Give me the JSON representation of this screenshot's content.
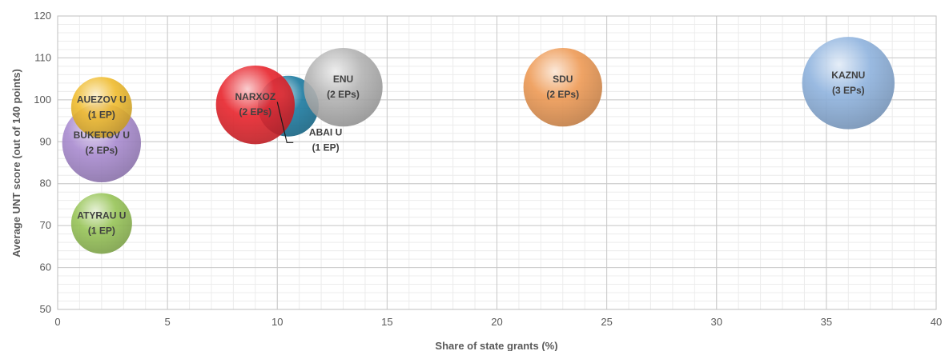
{
  "chart_data": {
    "type": "bubble",
    "title": "",
    "xlabel": "Share of state grants (%)",
    "ylabel": "Average UNT score (out of 140 points)",
    "xlim": [
      0,
      40
    ],
    "ylim": [
      50,
      120
    ],
    "x_ticks": [
      "0",
      "5",
      "10",
      "15",
      "20",
      "25",
      "30",
      "35",
      "40"
    ],
    "y_ticks": [
      "50",
      "60",
      "70",
      "80",
      "90",
      "100",
      "110",
      "120"
    ],
    "grid": true,
    "legend": "none",
    "points": [
      {
        "line1": "BUKETOV U",
        "line2": "(2 EPs)",
        "x": 2,
        "y": 89.7,
        "eps": 2,
        "color": "#a98bd0"
      },
      {
        "line1": "AUEZOV U",
        "line2": "(1 EP)",
        "x": 2,
        "y": 98.2,
        "eps": 1,
        "color": "#f0bc2e"
      },
      {
        "line1": "ATYRAU U",
        "line2": "(1 EP)",
        "x": 2,
        "y": 70.5,
        "eps": 1,
        "color": "#97c457"
      },
      {
        "line1": "ABAI U",
        "line2": "(1 EP)",
        "x": 10.5,
        "y": 98.5,
        "eps": 1,
        "color": "#1b7aa0"
      },
      {
        "line1": "NARXOZ",
        "line2": "(2 EPs)",
        "x": 9,
        "y": 98.8,
        "eps": 2,
        "color": "#e8242c"
      },
      {
        "line1": "ENU",
        "line2": "(2 EPs)",
        "x": 13,
        "y": 103,
        "eps": 2,
        "color": "#b3b3b3"
      },
      {
        "line1": "SDU",
        "line2": "(2 EPs)",
        "x": 23,
        "y": 103,
        "eps": 2,
        "color": "#ee9a55"
      },
      {
        "line1": "KAZNU",
        "line2": "(3 EPs)",
        "x": 36,
        "y": 104,
        "eps": 3,
        "color": "#8fb3de"
      }
    ]
  }
}
